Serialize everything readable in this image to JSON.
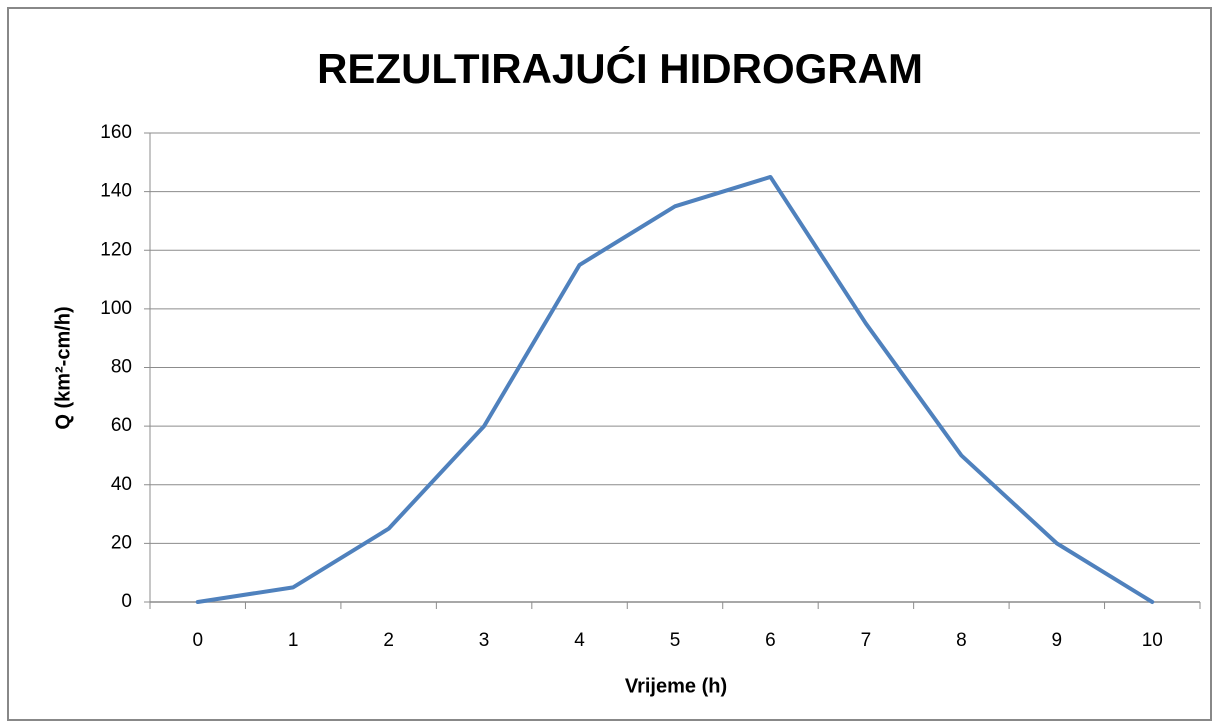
{
  "chart_data": {
    "type": "line",
    "title": "REZULTIRAJUĆI HIDROGRAM",
    "x_label": "Vrijeme (h)",
    "y_label": "Q (km²-cm/h)",
    "categories": [
      "0",
      "1",
      "2",
      "3",
      "4",
      "5",
      "6",
      "7",
      "8",
      "9",
      "10"
    ],
    "series": [
      {
        "name": "Q",
        "color": "#4f81bd",
        "values": [
          0,
          5,
          25,
          60,
          115,
          135,
          145,
          95,
          50,
          20,
          0
        ]
      }
    ],
    "ylim": [
      0,
      160
    ],
    "yticks": [
      0,
      20,
      40,
      60,
      80,
      100,
      120,
      140,
      160
    ],
    "grid": true
  }
}
